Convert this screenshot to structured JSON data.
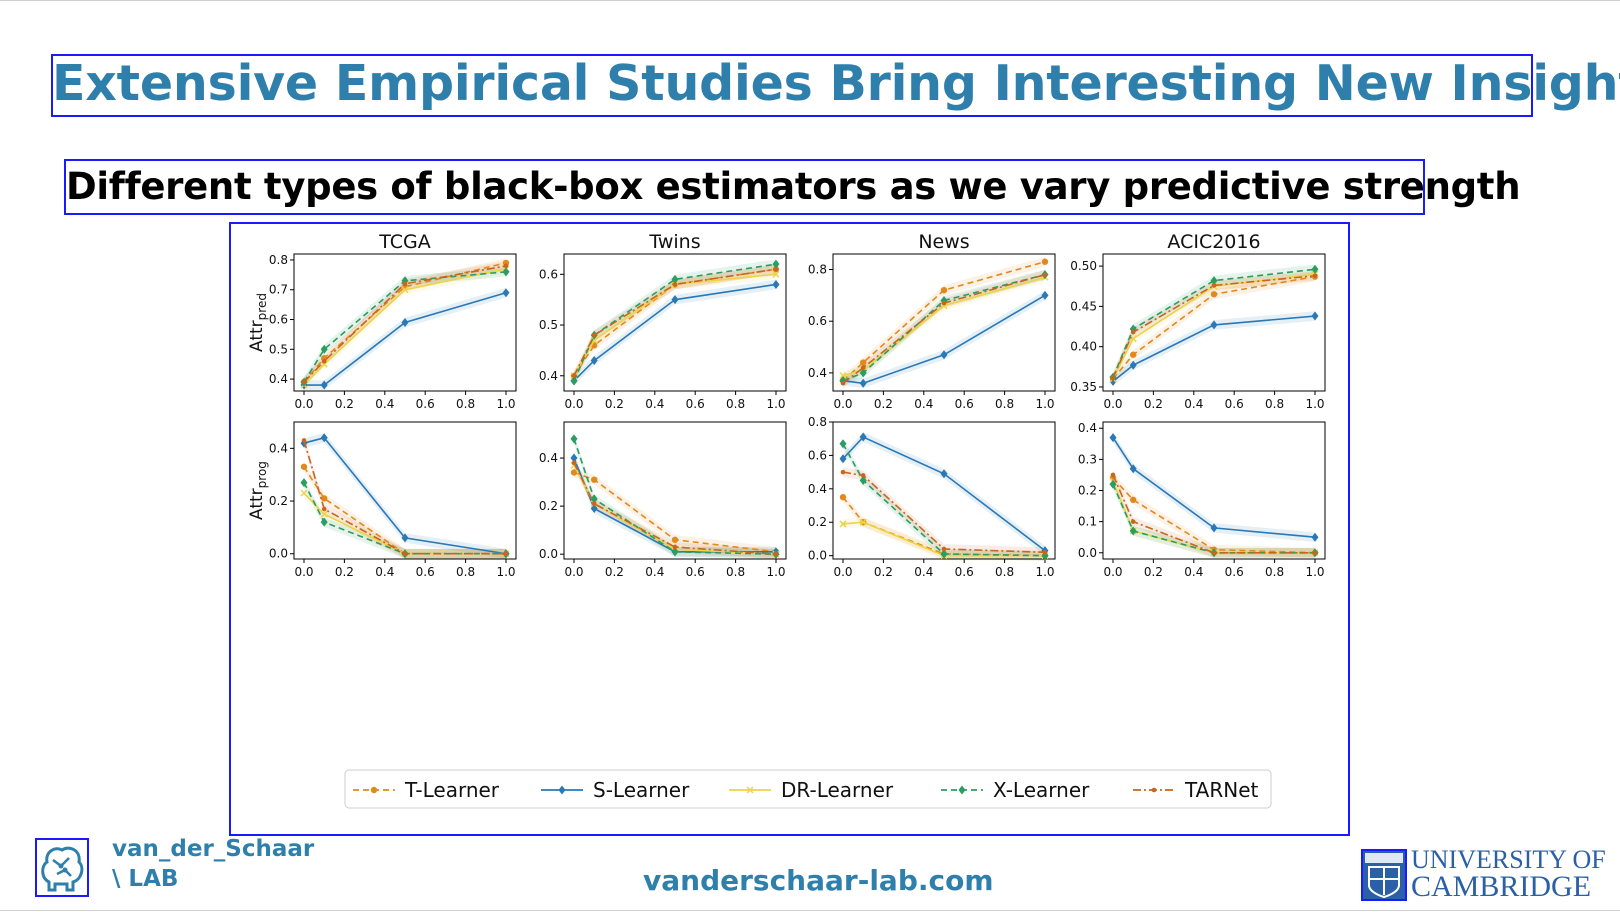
{
  "slide": {
    "title": "Extensive Empirical Studies Bring Interesting New Insights",
    "subtitle": "Different types of black-box estimators as we vary predictive strength"
  },
  "footer": {
    "lab_line1": "van_der_Schaar",
    "lab_line2": "\\ LAB",
    "website": "vanderschaar-lab.com",
    "university_line1": "UNIVERSITY OF",
    "university_line2": "CAMBRIDGE"
  },
  "colors": {
    "title": "#2e7fab",
    "T-Learner": "#e08a1e",
    "S-Learner": "#2a78b5",
    "DR-Learner": "#ecd34a",
    "X-Learner": "#2a9d62",
    "TARNet": "#c9651f"
  },
  "chart_data": {
    "type": "line",
    "x": [
      0.0,
      0.1,
      0.5,
      1.0
    ],
    "legend": [
      "T-Learner",
      "S-Learner",
      "DR-Learner",
      "X-Learner",
      "TARNet"
    ],
    "legend_position": "bottom",
    "row_ylabels": [
      "Attr_pred",
      "Attr_prog"
    ],
    "panels": [
      {
        "title": "TCGA",
        "row": 0,
        "col": 0,
        "ylim": [
          0.36,
          0.82
        ],
        "yticks": [
          0.4,
          0.5,
          0.6,
          0.7,
          0.8
        ],
        "ytick_labels": [
          "0.4",
          "0.5",
          "0.6",
          "0.7",
          "0.8"
        ],
        "series": [
          {
            "name": "T-Learner",
            "values": [
              0.39,
              0.47,
              0.71,
              0.79
            ]
          },
          {
            "name": "S-Learner",
            "values": [
              0.38,
              0.38,
              0.59,
              0.69
            ]
          },
          {
            "name": "DR-Learner",
            "values": [
              0.38,
              0.45,
              0.7,
              0.77
            ]
          },
          {
            "name": "X-Learner",
            "values": [
              0.39,
              0.5,
              0.73,
              0.76
            ]
          },
          {
            "name": "TARNet",
            "values": [
              0.39,
              0.46,
              0.72,
              0.78
            ]
          }
        ]
      },
      {
        "title": "Twins",
        "row": 0,
        "col": 1,
        "ylim": [
          0.37,
          0.64
        ],
        "yticks": [
          0.4,
          0.5,
          0.6
        ],
        "ytick_labels": [
          "0.4",
          "0.5",
          "0.6"
        ],
        "series": [
          {
            "name": "T-Learner",
            "values": [
              0.4,
              0.46,
              0.58,
              0.61
            ]
          },
          {
            "name": "S-Learner",
            "values": [
              0.39,
              0.43,
              0.55,
              0.58
            ]
          },
          {
            "name": "DR-Learner",
            "values": [
              0.4,
              0.47,
              0.58,
              0.6
            ]
          },
          {
            "name": "X-Learner",
            "values": [
              0.39,
              0.48,
              0.59,
              0.62
            ]
          },
          {
            "name": "TARNet",
            "values": [
              0.4,
              0.48,
              0.58,
              0.61
            ]
          }
        ]
      },
      {
        "title": "News",
        "row": 0,
        "col": 2,
        "ylim": [
          0.33,
          0.86
        ],
        "yticks": [
          0.4,
          0.6,
          0.8
        ],
        "ytick_labels": [
          "0.4",
          "0.6",
          "0.8"
        ],
        "series": [
          {
            "name": "T-Learner",
            "values": [
              0.37,
              0.44,
              0.72,
              0.83
            ]
          },
          {
            "name": "S-Learner",
            "values": [
              0.37,
              0.36,
              0.47,
              0.7
            ]
          },
          {
            "name": "DR-Learner",
            "values": [
              0.39,
              0.41,
              0.66,
              0.77
            ]
          },
          {
            "name": "X-Learner",
            "values": [
              0.37,
              0.4,
              0.68,
              0.78
            ]
          },
          {
            "name": "TARNet",
            "values": [
              0.36,
              0.42,
              0.67,
              0.78
            ]
          }
        ]
      },
      {
        "title": "ACIC2016",
        "row": 0,
        "col": 3,
        "ylim": [
          0.345,
          0.515
        ],
        "yticks": [
          0.35,
          0.4,
          0.45,
          0.5
        ],
        "ytick_labels": [
          "0.35",
          "0.40",
          "0.45",
          "0.50"
        ],
        "series": [
          {
            "name": "T-Learner",
            "values": [
              0.36,
              0.39,
              0.465,
              0.487
            ]
          },
          {
            "name": "S-Learner",
            "values": [
              0.357,
              0.377,
              0.427,
              0.438
            ]
          },
          {
            "name": "DR-Learner",
            "values": [
              0.36,
              0.41,
              0.475,
              0.49
            ]
          },
          {
            "name": "X-Learner",
            "values": [
              0.362,
              0.422,
              0.482,
              0.496
            ]
          },
          {
            "name": "TARNet",
            "values": [
              0.361,
              0.418,
              0.476,
              0.488
            ]
          }
        ]
      },
      {
        "title": "",
        "row": 1,
        "col": 0,
        "ylim": [
          -0.02,
          0.5
        ],
        "yticks": [
          0.0,
          0.2,
          0.4
        ],
        "ytick_labels": [
          "0.0",
          "0.2",
          "0.4"
        ],
        "series": [
          {
            "name": "T-Learner",
            "values": [
              0.33,
              0.21,
              0.0,
              0.0
            ]
          },
          {
            "name": "S-Learner",
            "values": [
              0.42,
              0.44,
              0.06,
              0.0
            ]
          },
          {
            "name": "DR-Learner",
            "values": [
              0.23,
              0.15,
              0.0,
              0.0
            ]
          },
          {
            "name": "X-Learner",
            "values": [
              0.27,
              0.12,
              0.0,
              0.0
            ]
          },
          {
            "name": "TARNet",
            "values": [
              0.43,
              0.17,
              0.0,
              0.0
            ]
          }
        ]
      },
      {
        "title": "",
        "row": 1,
        "col": 1,
        "ylim": [
          -0.02,
          0.55
        ],
        "yticks": [
          0.0,
          0.2,
          0.4
        ],
        "ytick_labels": [
          "0.0",
          "0.2",
          "0.4"
        ],
        "series": [
          {
            "name": "T-Learner",
            "values": [
              0.34,
              0.31,
              0.06,
              0.01
            ]
          },
          {
            "name": "S-Learner",
            "values": [
              0.4,
              0.19,
              0.01,
              0.01
            ]
          },
          {
            "name": "DR-Learner",
            "values": [
              0.37,
              0.21,
              0.02,
              0.0
            ]
          },
          {
            "name": "X-Learner",
            "values": [
              0.48,
              0.23,
              0.01,
              0.0
            ]
          },
          {
            "name": "TARNet",
            "values": [
              0.38,
              0.21,
              0.03,
              0.0
            ]
          }
        ]
      },
      {
        "title": "",
        "row": 1,
        "col": 2,
        "ylim": [
          -0.02,
          0.8
        ],
        "yticks": [
          0.0,
          0.2,
          0.4,
          0.6,
          0.8
        ],
        "ytick_labels": [
          "0.0",
          "0.2",
          "0.4",
          "0.6",
          "0.8"
        ],
        "series": [
          {
            "name": "T-Learner",
            "values": [
              0.35,
              0.2,
              0.01,
              0.0
            ]
          },
          {
            "name": "S-Learner",
            "values": [
              0.58,
              0.71,
              0.49,
              0.03
            ]
          },
          {
            "name": "DR-Learner",
            "values": [
              0.19,
              0.2,
              0.0,
              0.0
            ]
          },
          {
            "name": "X-Learner",
            "values": [
              0.67,
              0.45,
              0.01,
              0.0
            ]
          },
          {
            "name": "TARNet",
            "values": [
              0.5,
              0.48,
              0.04,
              0.02
            ]
          }
        ]
      },
      {
        "title": "",
        "row": 1,
        "col": 3,
        "ylim": [
          -0.02,
          0.42
        ],
        "yticks": [
          0.0,
          0.1,
          0.2,
          0.3,
          0.4
        ],
        "ytick_labels": [
          "0.0",
          "0.1",
          "0.2",
          "0.3",
          "0.4"
        ],
        "series": [
          {
            "name": "T-Learner",
            "values": [
              0.24,
              0.17,
              0.01,
              0.0
            ]
          },
          {
            "name": "S-Learner",
            "values": [
              0.37,
              0.27,
              0.08,
              0.05
            ]
          },
          {
            "name": "DR-Learner",
            "values": [
              0.23,
              0.07,
              0.0,
              0.0
            ]
          },
          {
            "name": "X-Learner",
            "values": [
              0.22,
              0.07,
              0.0,
              0.0
            ]
          },
          {
            "name": "TARNet",
            "values": [
              0.25,
              0.1,
              0.0,
              0.0
            ]
          }
        ]
      }
    ]
  }
}
